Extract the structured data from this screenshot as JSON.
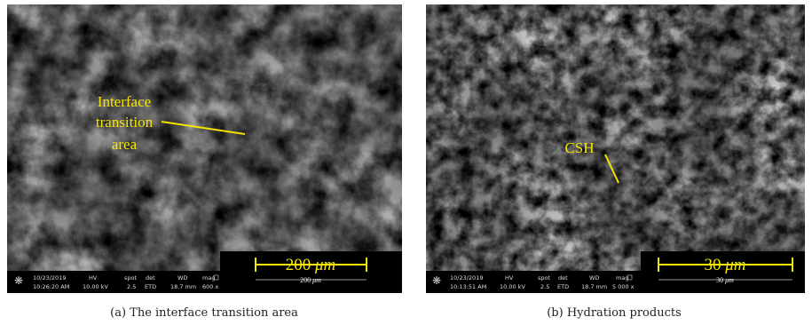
{
  "panels": [
    {
      "annotation": [
        "Interface",
        "transition",
        "area"
      ],
      "scale": {
        "number": "200",
        "unit": "μm",
        "small_number": "200",
        "small_unit": "μm"
      },
      "info": {
        "date": "10/23/2019",
        "time": "10:26:20 AM",
        "hv_label": "HV",
        "hv": "10.00 kV",
        "spot_label": "spot",
        "spot": "2.5",
        "det_label": "det",
        "det": "ETD",
        "wd_label": "WD",
        "wd": "18.7 mm",
        "mag_label": "mag",
        "mag": "600 x"
      },
      "caption": "(a) The interface transition area"
    },
    {
      "annotation": [
        "CSH"
      ],
      "scale": {
        "number": "30",
        "unit": "μm",
        "small_number": "30",
        "small_unit": "μm"
      },
      "info": {
        "date": "10/23/2019",
        "time": "10:13:51 AM",
        "hv_label": "HV",
        "hv": "10.00 kV",
        "spot_label": "spot",
        "spot": "2.5",
        "det_label": "det",
        "det": "ETD",
        "wd_label": "WD",
        "wd": "18.7 mm",
        "mag_label": "mag",
        "mag": "5 000 x"
      },
      "caption": "(b) Hydration products"
    }
  ]
}
